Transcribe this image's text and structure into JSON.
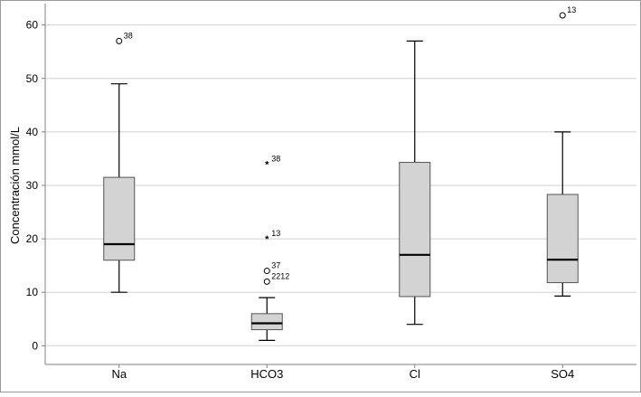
{
  "chart_data": {
    "type": "boxplot",
    "title": "",
    "xlabel": "",
    "ylabel": "Concentración mmol/L",
    "ylim": [
      -3.5,
      64
    ],
    "yticks": [
      0,
      10,
      20,
      30,
      40,
      50,
      60
    ],
    "grid": "horizontal",
    "categories": [
      "Na",
      "HCO3",
      "Cl",
      "SO4"
    ],
    "boxes": [
      {
        "category": "Na",
        "whisker_low": 10,
        "q1": 16,
        "median": 19,
        "q3": 31.5,
        "whisker_high": 49,
        "outliers": [
          {
            "value": 57,
            "label": "38",
            "marker": "circle"
          }
        ]
      },
      {
        "category": "HCO3",
        "whisker_low": 1,
        "q1": 3,
        "median": 4.2,
        "q3": 6,
        "whisker_high": 9,
        "outliers": [
          {
            "value": 34,
            "label": "38",
            "marker": "star"
          },
          {
            "value": 20,
            "label": "13",
            "marker": "star"
          },
          {
            "value": 14,
            "label": "37",
            "marker": "circle"
          },
          {
            "value": 12,
            "label": "2212",
            "marker": "circle"
          }
        ]
      },
      {
        "category": "Cl",
        "whisker_low": 4,
        "q1": 9.2,
        "median": 17,
        "q3": 34.3,
        "whisker_high": 57,
        "outliers": []
      },
      {
        "category": "SO4",
        "whisker_low": 9.3,
        "q1": 11.8,
        "median": 16.1,
        "q3": 28.3,
        "whisker_high": 40,
        "outliers": [
          {
            "value": 61.8,
            "label": "13",
            "marker": "circle"
          }
        ]
      }
    ],
    "colors": {
      "box_fill": "#d3d3d3",
      "line": "#000000",
      "grid": "#d0d0d0",
      "frame": "#808080",
      "text": "#000000"
    }
  }
}
